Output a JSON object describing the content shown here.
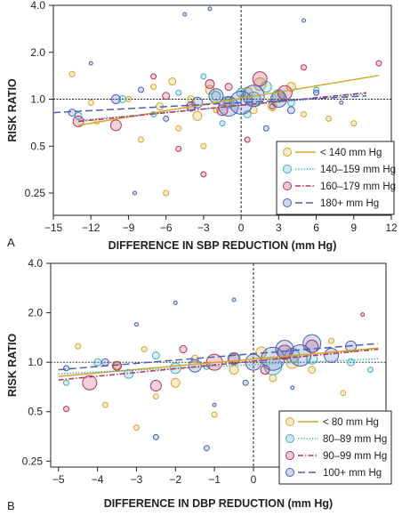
{
  "chart_data": [
    {
      "type": "scatter",
      "panel_label": "A",
      "xlabel": "DIFFERENCE IN SBP REDUCTION (mm Hg)",
      "ylabel": "RISK RATIO",
      "xlim": [
        -15,
        12
      ],
      "ylim": [
        0.18,
        4.0
      ],
      "y_scale": "log",
      "xticks": [
        -15,
        -12,
        -9,
        -6,
        -3,
        0,
        3,
        6,
        9,
        12
      ],
      "yticks": [
        0.25,
        0.5,
        1.0,
        2.0,
        4.0
      ],
      "ytick_labels": [
        "0.25",
        "0.5",
        "1.0",
        "2.0",
        "4.0"
      ],
      "reference_lines": {
        "x": 0,
        "y": 1.0
      },
      "legend_position": "lower-right",
      "series": [
        {
          "name": "< 140 mm Hg",
          "color": "#d4a62a",
          "dash": "solid",
          "line": [
            [
              -13,
              0.68
            ],
            [
              11,
              1.42
            ]
          ],
          "points": [
            [
              -13.5,
              1.45,
              3
            ],
            [
              -12,
              0.95,
              3
            ],
            [
              -11.5,
              0.72,
              3
            ],
            [
              -9,
              1.0,
              3
            ],
            [
              -8,
              0.55,
              3
            ],
            [
              -7,
              1.2,
              3
            ],
            [
              -6.5,
              0.9,
              4
            ],
            [
              -6,
              0.25,
              3
            ],
            [
              -5.5,
              1.3,
              4
            ],
            [
              -5,
              0.65,
              3
            ],
            [
              -4,
              1.0,
              4
            ],
            [
              -3.5,
              0.78,
              5
            ],
            [
              -3,
              0.5,
              3
            ],
            [
              -2.5,
              1.15,
              5
            ],
            [
              -2,
              0.85,
              3
            ],
            [
              -1,
              0.95,
              4
            ],
            [
              0.5,
              1.1,
              6
            ],
            [
              1,
              0.85,
              4
            ],
            [
              1.5,
              1.25,
              7
            ],
            [
              2.5,
              0.9,
              5
            ],
            [
              3,
              1.05,
              7
            ],
            [
              4,
              1.2,
              5
            ],
            [
              5,
              0.8,
              3
            ],
            [
              7,
              0.75,
              3
            ],
            [
              9,
              0.7,
              3
            ]
          ]
        },
        {
          "name": "140–159 mm Hg",
          "color": "#46aebd",
          "dash": "dotted",
          "line": [
            [
              -13,
              0.73
            ],
            [
              10,
              1.08
            ]
          ],
          "points": [
            [
              -13,
              0.78,
              4
            ],
            [
              -9.5,
              1.0,
              4
            ],
            [
              -7,
              0.8,
              3
            ],
            [
              -5,
              1.1,
              3
            ],
            [
              -4,
              0.88,
              4
            ],
            [
              -3,
              1.4,
              3
            ],
            [
              -2,
              1.05,
              5
            ],
            [
              -1.5,
              0.7,
              3
            ],
            [
              -1,
              0.95,
              6
            ],
            [
              0,
              1.1,
              5
            ],
            [
              0.5,
              0.8,
              4
            ],
            [
              1,
              1.0,
              8
            ],
            [
              2,
              1.2,
              6
            ],
            [
              3,
              1.05,
              7
            ],
            [
              4,
              0.95,
              4
            ],
            [
              6,
              1.15,
              3
            ]
          ]
        },
        {
          "name": "160–179 mm Hg",
          "color": "#b8325c",
          "dash": "dashdot",
          "line": [
            [
              -13,
              0.72
            ],
            [
              10,
              1.1
            ]
          ],
          "points": [
            [
              -13,
              0.72,
              6
            ],
            [
              -10,
              0.68,
              6
            ],
            [
              -7,
              1.4,
              3
            ],
            [
              -6,
              1.05,
              4
            ],
            [
              -5,
              0.48,
              3
            ],
            [
              -4,
              0.9,
              5
            ],
            [
              -3,
              0.33,
              3
            ],
            [
              -2.5,
              1.25,
              5
            ],
            [
              -1.5,
              0.85,
              6
            ],
            [
              -1,
              1.2,
              4
            ],
            [
              0.5,
              0.55,
              3
            ],
            [
              1.5,
              1.35,
              8
            ],
            [
              2.5,
              0.9,
              3
            ],
            [
              3.5,
              1.1,
              8
            ],
            [
              5,
              1.6,
              3
            ],
            [
              9,
              0.5,
              3
            ],
            [
              11,
              1.7,
              3
            ]
          ]
        },
        {
          "name": "180+ mm Hg",
          "color": "#4a5fb6",
          "dash": "dashed",
          "line": [
            [
              -15,
              0.82
            ],
            [
              10,
              1.05
            ]
          ],
          "points": [
            [
              -13.5,
              0.82,
              4
            ],
            [
              -12,
              1.7,
              2
            ],
            [
              -10,
              1.0,
              5
            ],
            [
              -8,
              1.15,
              3
            ],
            [
              -6,
              0.75,
              3
            ],
            [
              -4.5,
              3.5,
              2
            ],
            [
              -3.5,
              0.95,
              6
            ],
            [
              -2,
              1.05,
              8
            ],
            [
              -1,
              0.9,
              11
            ],
            [
              0,
              0.95,
              13
            ],
            [
              1,
              1.05,
              12
            ],
            [
              2,
              0.65,
              3
            ],
            [
              3,
              1.0,
              9
            ],
            [
              4,
              0.85,
              4
            ],
            [
              6,
              1.1,
              3
            ],
            [
              8,
              0.95,
              2
            ],
            [
              -8.5,
              0.25,
              2
            ],
            [
              -2.5,
              3.8,
              2
            ],
            [
              5,
              3.2,
              2
            ]
          ]
        }
      ]
    },
    {
      "type": "scatter",
      "panel_label": "B",
      "xlabel": "DIFFERENCE IN DBP REDUCTION (mm Hg)",
      "ylabel": "RISK RATIO",
      "xlim": [
        -5.2,
        3.4
      ],
      "ylim": [
        0.23,
        4.0
      ],
      "y_scale": "log",
      "xticks": [
        -5,
        -4,
        -3,
        -2,
        -1,
        0,
        1,
        2,
        3
      ],
      "yticks": [
        0.25,
        0.5,
        1.0,
        2.0,
        4.0
      ],
      "ytick_labels": [
        "0.25",
        "0.5",
        "1.0",
        "2.0",
        "4.0"
      ],
      "reference_lines": {
        "x": 0,
        "y": 1.0
      },
      "legend_position": "lower-right",
      "series": [
        {
          "name": "< 80 mm Hg",
          "color": "#d4a62a",
          "dash": "solid",
          "line": [
            [
              -5,
              0.82
            ],
            [
              3.2,
              1.22
            ]
          ],
          "points": [
            [
              -4.5,
              1.25,
              3
            ],
            [
              -3.8,
              0.55,
              3
            ],
            [
              -3.5,
              0.95,
              4
            ],
            [
              -3,
              0.4,
              3
            ],
            [
              -2.8,
              1.2,
              3
            ],
            [
              -2.5,
              0.62,
              3
            ],
            [
              -2,
              0.75,
              5
            ],
            [
              -1.5,
              1.05,
              4
            ],
            [
              -1,
              0.48,
              3
            ],
            [
              -0.5,
              0.9,
              5
            ],
            [
              0.2,
              1.15,
              6
            ],
            [
              0.5,
              0.8,
              4
            ],
            [
              1,
              1.0,
              7
            ],
            [
              1.5,
              0.9,
              4
            ],
            [
              2,
              1.35,
              3
            ],
            [
              2.3,
              0.65,
              3
            ]
          ]
        },
        {
          "name": "80–89 mm Hg",
          "color": "#46aebd",
          "dash": "dotted",
          "line": [
            [
              -5,
              0.85
            ],
            [
              3.2,
              1.05
            ]
          ],
          "points": [
            [
              -4.8,
              0.75,
              3
            ],
            [
              -4,
              1.0,
              4
            ],
            [
              -3.2,
              0.85,
              5
            ],
            [
              -2.5,
              1.1,
              4
            ],
            [
              -2,
              0.92,
              6
            ],
            [
              -1.2,
              0.95,
              4
            ],
            [
              -0.5,
              1.05,
              7
            ],
            [
              0.5,
              0.95,
              10
            ],
            [
              1,
              1.1,
              8
            ],
            [
              1.5,
              1.05,
              6
            ],
            [
              2.5,
              1.0,
              4
            ],
            [
              3,
              0.9,
              3
            ]
          ]
        },
        {
          "name": "90–99 mm Hg",
          "color": "#b8325c",
          "dash": "dashdot",
          "line": [
            [
              -5,
              0.78
            ],
            [
              3.2,
              1.2
            ]
          ],
          "points": [
            [
              -4.8,
              0.52,
              3
            ],
            [
              -4.2,
              0.75,
              8
            ],
            [
              -3.5,
              0.95,
              5
            ],
            [
              -2.5,
              0.72,
              6
            ],
            [
              -1.8,
              1.2,
              4
            ],
            [
              -1,
              1.0,
              9
            ],
            [
              -0.5,
              1.05,
              6
            ],
            [
              0.3,
              0.9,
              5
            ],
            [
              0.8,
              1.15,
              8
            ],
            [
              1.5,
              1.25,
              7
            ],
            [
              2.8,
              1.95,
              2
            ]
          ]
        },
        {
          "name": "100+ mm Hg",
          "color": "#4a5fb6",
          "dash": "dashed",
          "line": [
            [
              -5,
              0.9
            ],
            [
              3.2,
              1.3
            ]
          ],
          "points": [
            [
              -4.8,
              0.92,
              3
            ],
            [
              -3.8,
              1.0,
              4
            ],
            [
              -2.5,
              0.35,
              3
            ],
            [
              -2,
              2.3,
              2
            ],
            [
              -1.5,
              0.95,
              7
            ],
            [
              -1.2,
              0.3,
              3
            ],
            [
              -0.5,
              2.4,
              2
            ],
            [
              0,
              1.0,
              9
            ],
            [
              0.5,
              1.05,
              13
            ],
            [
              0.8,
              1.2,
              10
            ],
            [
              1.2,
              1.1,
              12
            ],
            [
              1.5,
              1.3,
              10
            ],
            [
              2,
              1.1,
              8
            ],
            [
              2.5,
              1.25,
              6
            ],
            [
              -0.2,
              0.75,
              3
            ],
            [
              -3,
              1.7,
              2
            ],
            [
              -1,
              0.55,
              2
            ],
            [
              1,
              0.7,
              2
            ]
          ]
        }
      ]
    }
  ]
}
